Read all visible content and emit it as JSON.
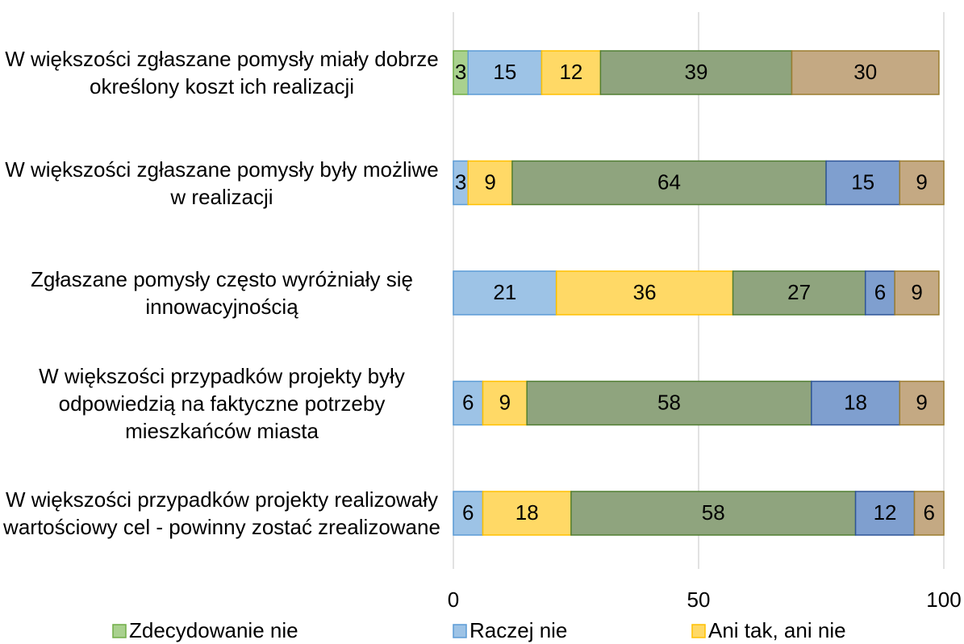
{
  "chart_data": {
    "type": "stacked_bar_horizontal",
    "categories": [
      "W większości zgłaszane pomysły miały dobrze określony koszt ich realizacji",
      "W większości zgłaszane pomysły były możliwe w realizacji",
      "Zgłaszane pomysły często wyróżniały się innowacyjnością",
      "W większości przypadków projekty były odpowiedzią na faktyczne potrzeby mieszkańców miasta",
      "W większości przypadków projekty realizowały wartościowy cel - powinny zostać zrealizowane"
    ],
    "series": [
      {
        "name": "Zdecydowanie nie",
        "color": "#a9d18e",
        "border": "#70ad47",
        "values": [
          3,
          null,
          null,
          null,
          null
        ]
      },
      {
        "name": "Raczej nie",
        "color": "#9dc3e6",
        "border": "#5b9bd5",
        "values": [
          15,
          3,
          21,
          6,
          6
        ]
      },
      {
        "name": "Ani tak, ani nie",
        "color": "#ffd966",
        "border": "#ffc000",
        "values": [
          12,
          9,
          36,
          9,
          18
        ]
      },
      {
        "color": "#8fa47e",
        "border": "#507e32",
        "values": [
          39,
          64,
          27,
          58,
          58
        ]
      },
      {
        "color": "#7f9fcf",
        "border": "#2f5597",
        "values": [
          null,
          15,
          6,
          18,
          12
        ]
      },
      {
        "color": "#c4a983",
        "border": "#9c7d2e",
        "values": [
          30,
          9,
          9,
          9,
          6
        ]
      }
    ],
    "xlim": [
      0,
      100
    ],
    "xticks": [
      0,
      50,
      100
    ],
    "grid": true
  }
}
